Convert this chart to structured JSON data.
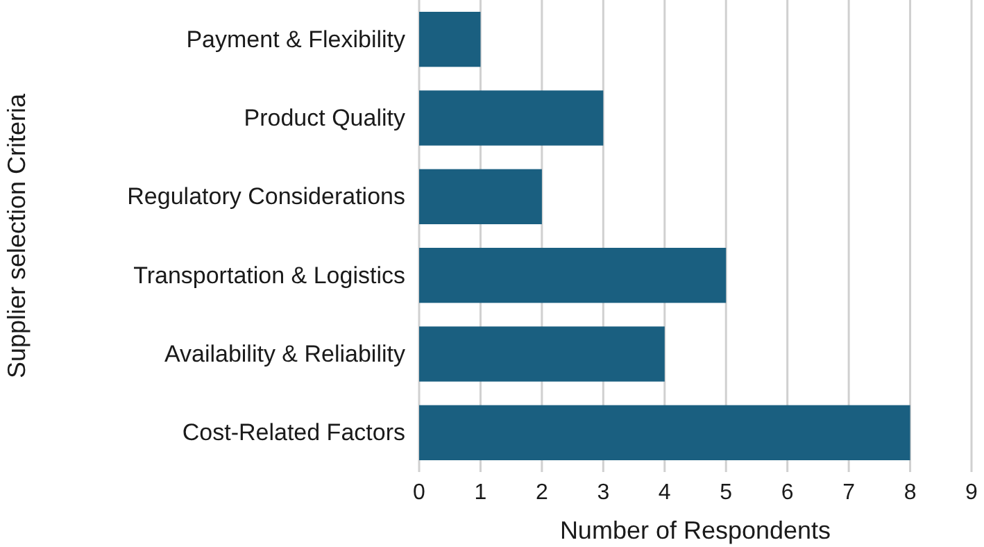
{
  "chart_data": {
    "type": "bar",
    "orientation": "horizontal",
    "xlabel": "Number of Respondents",
    "ylabel": "Supplier selection Criteria",
    "categories": [
      "Payment & Flexibility",
      "Product Quality",
      "Regulatory Considerations",
      "Transportation & Logistics",
      "Availability & Reliability",
      "Cost-Related Factors"
    ],
    "values": [
      1,
      3,
      2,
      5,
      4,
      8
    ],
    "color": "#1a5f80",
    "xlim": [
      0,
      9
    ],
    "xticks": [
      0,
      1,
      2,
      3,
      4,
      5,
      6,
      7,
      8,
      9
    ],
    "grid": "x"
  }
}
